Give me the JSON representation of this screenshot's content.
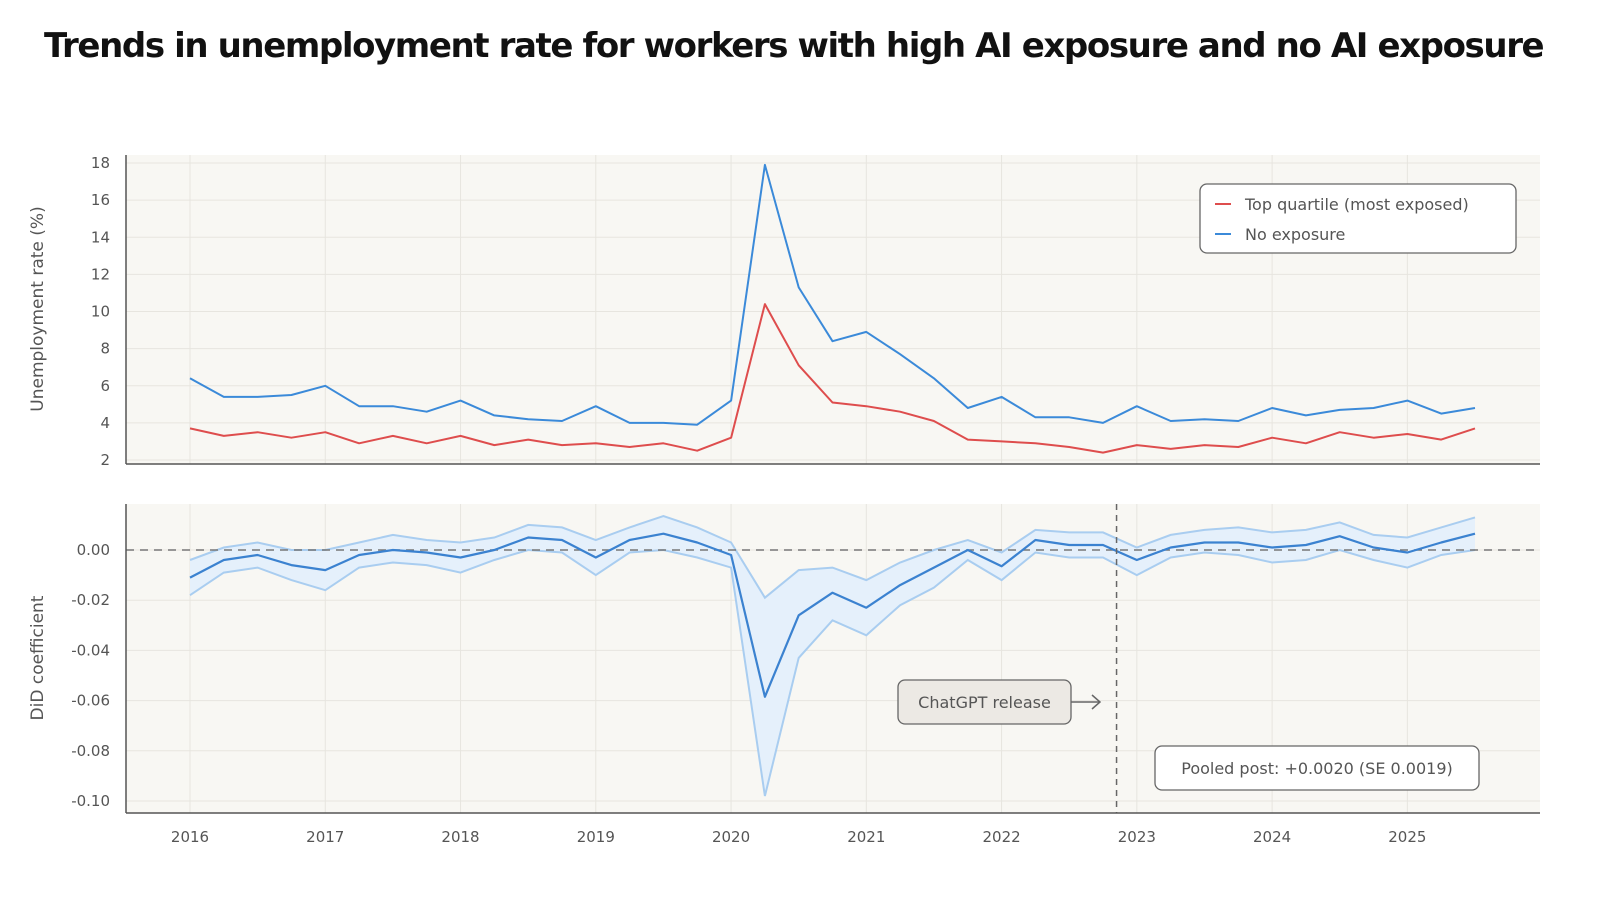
{
  "title": "Trends in unemployment rate for workers with high AI exposure and no AI exposure",
  "colors": {
    "top_quartile": "#de4d4d",
    "no_exposure": "#3b8ad9",
    "did_line": "#3b82d0",
    "did_band_fill": "#e5f0fb",
    "did_band_edge": "#a9cdf0",
    "panel_background": "#f8f7f3",
    "grid": "#e7e5df"
  },
  "chart_data": [
    {
      "type": "line",
      "ylabel": "Unemployment rate (%)",
      "ylim": [
        2,
        18
      ],
      "yticks": [
        2,
        4,
        6,
        8,
        10,
        12,
        14,
        16,
        18
      ],
      "grid": true,
      "legend_position": "top-right",
      "x": [
        2016.0,
        2016.25,
        2016.5,
        2016.75,
        2017.0,
        2017.25,
        2017.5,
        2017.75,
        2018.0,
        2018.25,
        2018.5,
        2018.75,
        2019.0,
        2019.25,
        2019.5,
        2019.75,
        2020.0,
        2020.25,
        2020.5,
        2020.75,
        2021.0,
        2021.25,
        2021.5,
        2021.75,
        2022.0,
        2022.25,
        2022.5,
        2022.75,
        2023.0,
        2023.25,
        2023.5,
        2023.75,
        2024.0,
        2024.25,
        2024.5,
        2024.75,
        2025.0,
        2025.25,
        2025.5
      ],
      "series": [
        {
          "name": "Top quartile (most exposed)",
          "color_key": "top_quartile",
          "values": [
            3.7,
            3.3,
            3.5,
            3.2,
            3.5,
            2.9,
            3.3,
            2.9,
            3.3,
            2.8,
            3.1,
            2.8,
            2.9,
            2.7,
            2.9,
            2.5,
            3.2,
            10.4,
            7.1,
            5.1,
            4.9,
            4.6,
            4.1,
            3.1,
            3.0,
            2.9,
            2.7,
            2.4,
            2.8,
            2.6,
            2.8,
            2.7,
            3.2,
            2.9,
            3.5,
            3.2,
            3.4,
            3.1,
            3.7
          ]
        },
        {
          "name": "No exposure",
          "color_key": "no_exposure",
          "values": [
            6.4,
            5.4,
            5.4,
            5.5,
            6.0,
            4.9,
            4.9,
            4.6,
            5.2,
            4.4,
            4.2,
            4.1,
            4.9,
            4.0,
            4.0,
            3.9,
            5.2,
            17.9,
            11.3,
            8.4,
            8.9,
            7.7,
            6.4,
            4.8,
            5.4,
            4.3,
            4.3,
            4.0,
            4.9,
            4.1,
            4.2,
            4.1,
            4.8,
            4.4,
            4.7,
            4.8,
            5.2,
            4.5,
            4.8
          ]
        }
      ]
    },
    {
      "type": "line",
      "ylabel": "DiD coefficient",
      "ylim": [
        -0.1,
        0.015
      ],
      "yticks": [
        0.0,
        -0.02,
        -0.04,
        -0.06,
        -0.08,
        -0.1
      ],
      "ytick_labels": [
        "0.00",
        "-0.02",
        "-0.04",
        "-0.06",
        "-0.08",
        "-0.10"
      ],
      "xlabel": "",
      "xticks": [
        2016,
        2017,
        2018,
        2019,
        2020,
        2021,
        2022,
        2023,
        2024,
        2025
      ],
      "xtick_labels": [
        "2016",
        "2017",
        "2018",
        "2019",
        "2020",
        "2021",
        "2022",
        "2023",
        "2024",
        "2025"
      ],
      "grid": true,
      "zero_reference_line": 0.0,
      "x": [
        2016.0,
        2016.25,
        2016.5,
        2016.75,
        2017.0,
        2017.25,
        2017.5,
        2017.75,
        2018.0,
        2018.25,
        2018.5,
        2018.75,
        2019.0,
        2019.25,
        2019.5,
        2019.75,
        2020.0,
        2020.25,
        2020.5,
        2020.75,
        2021.0,
        2021.25,
        2021.5,
        2021.75,
        2022.0,
        2022.25,
        2022.5,
        2022.75,
        2023.0,
        2023.25,
        2023.5,
        2023.75,
        2024.0,
        2024.25,
        2024.5,
        2024.75,
        2025.0,
        2025.25,
        2025.5
      ],
      "coefficient": [
        -0.011,
        -0.004,
        -0.002,
        -0.006,
        -0.008,
        -0.002,
        0.0,
        -0.001,
        -0.003,
        0.0,
        0.005,
        0.004,
        -0.003,
        0.004,
        0.0065,
        0.003,
        -0.002,
        -0.0585,
        -0.026,
        -0.017,
        -0.023,
        -0.014,
        -0.007,
        0.0,
        -0.0065,
        0.004,
        0.002,
        0.002,
        -0.004,
        0.001,
        0.003,
        0.003,
        0.001,
        0.002,
        0.0055,
        0.001,
        -0.001,
        0.003,
        0.0065
      ],
      "ci_upper": [
        -0.004,
        0.001,
        0.003,
        0.0,
        0.0,
        0.003,
        0.006,
        0.004,
        0.003,
        0.005,
        0.01,
        0.009,
        0.004,
        0.009,
        0.0135,
        0.009,
        0.003,
        -0.019,
        -0.008,
        -0.007,
        -0.012,
        -0.005,
        0.0,
        0.004,
        -0.001,
        0.008,
        0.007,
        0.007,
        0.001,
        0.006,
        0.008,
        0.009,
        0.007,
        0.008,
        0.011,
        0.006,
        0.005,
        0.009,
        0.013
      ],
      "ci_lower": [
        -0.018,
        -0.009,
        -0.007,
        -0.012,
        -0.016,
        -0.007,
        -0.005,
        -0.006,
        -0.009,
        -0.004,
        0.0,
        -0.001,
        -0.01,
        -0.001,
        0.0,
        -0.003,
        -0.007,
        -0.098,
        -0.043,
        -0.028,
        -0.034,
        -0.022,
        -0.015,
        -0.004,
        -0.012,
        -0.001,
        -0.003,
        -0.003,
        -0.01,
        -0.003,
        -0.001,
        -0.002,
        -0.005,
        -0.004,
        0.0,
        -0.004,
        -0.007,
        -0.002,
        0.0
      ],
      "reference_line": {
        "x": 2022.85,
        "style": "dashed"
      },
      "annotations": [
        {
          "text": "ChatGPT release",
          "arrow": "right"
        },
        {
          "text": "Pooled post: +0.0020 (SE 0.0019)"
        }
      ]
    }
  ]
}
